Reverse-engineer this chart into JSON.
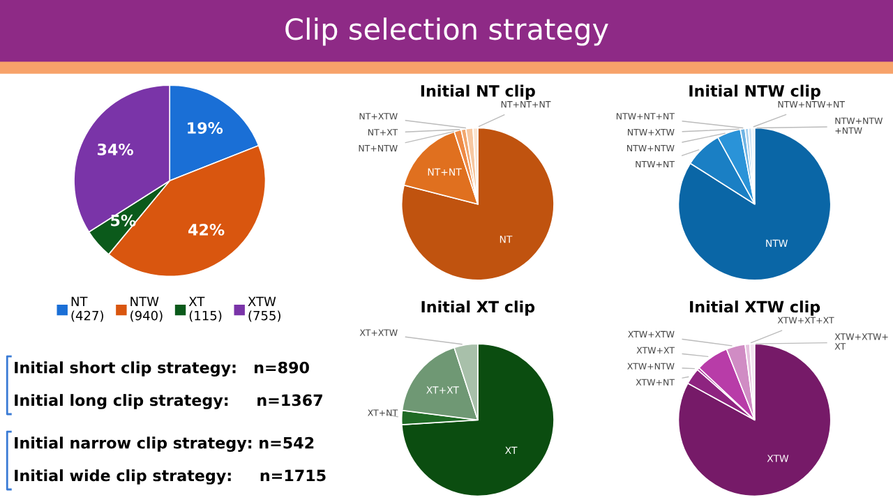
{
  "chart_data": [
    {
      "type": "pie",
      "title": "Clip selection strategy",
      "categories": [
        "NT\n(427)",
        "NTW\n(940)",
        "XT\n(115)",
        "XTW\n(755)"
      ],
      "values": [
        19,
        42,
        5,
        34
      ],
      "value_labels": [
        "19%",
        "42%",
        "5%",
        "34%"
      ],
      "colors": [
        "#1a6fd6",
        "#d9560f",
        "#0b5a1b",
        "#7a34a8"
      ],
      "legend": "bottom",
      "annotations": [
        "Initial short clip strategy:   n=890",
        "Initial long clip strategy:     n=1367",
        "Initial narrow clip strategy: n=542",
        "Initial wide clip strategy:     n=1715"
      ]
    },
    {
      "type": "pie",
      "title": "Initial NT clip",
      "categories": [
        "NT",
        "NT+NT",
        "NT+NTW",
        "NT+XT",
        "NT+XTW",
        "NT+NT+NT"
      ],
      "values": [
        79,
        16,
        1.5,
        1,
        1.5,
        1
      ],
      "colors": [
        "#c0530f",
        "#e0701f",
        "#ee8a45",
        "#f2a76e",
        "#f7c7a0",
        "#fbe3cf"
      ]
    },
    {
      "type": "pie",
      "title": "Initial NTW clip",
      "categories": [
        "NTW",
        "NTW+NT",
        "NTW+NTW",
        "NTW+XTW",
        "NTW+NT+NT",
        "NTW+NTW+NT",
        "NTW+NTW\n+NTW"
      ],
      "values": [
        84,
        8,
        5,
        1,
        0.7,
        0.7,
        0.6
      ],
      "colors": [
        "#0a66a6",
        "#1a7fc4",
        "#2a93d8",
        "#6fb4e4",
        "#a8d0ee",
        "#cfe5f6",
        "#e8f3fb"
      ]
    },
    {
      "type": "pie",
      "title": "Initial XT clip",
      "categories": [
        "XT",
        "XT+NT",
        "XT+XT",
        "XT+XTW"
      ],
      "values": [
        74,
        3,
        18,
        5
      ],
      "colors": [
        "#0b4d10",
        "#1f6a25",
        "#6f9874",
        "#a8c0aa"
      ]
    },
    {
      "type": "pie",
      "title": "Initial XTW clip",
      "categories": [
        "XTW",
        "XTW+NT",
        "XTW+NTW",
        "XTW+XT",
        "XTW+XTW",
        "XTW+XT+XT",
        "XTW+XTW+\nXT"
      ],
      "values": [
        83,
        3.5,
        0.5,
        7,
        4,
        1,
        1
      ],
      "colors": [
        "#761a68",
        "#8e2480",
        "#a8329a",
        "#b83ca8",
        "#d08cc4",
        "#e6c2df",
        "#f3e3f0"
      ]
    }
  ]
}
